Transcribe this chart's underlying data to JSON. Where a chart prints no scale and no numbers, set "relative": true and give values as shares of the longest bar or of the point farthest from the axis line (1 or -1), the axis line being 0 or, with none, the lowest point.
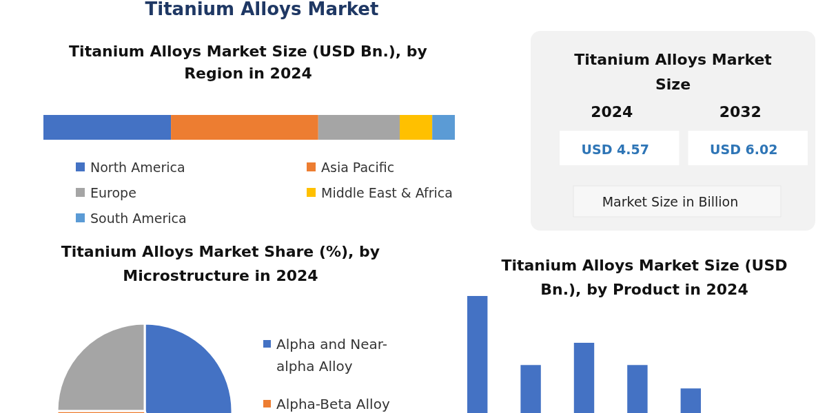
{
  "chart_data": [
    {
      "type": "bar",
      "title": "Titanium Alloys Market",
      "subtitle": "Titanium Alloys Market Size (USD Bn.), by Region in 2024",
      "categories": [
        null
      ],
      "stacked": true,
      "orientation": "horizontal",
      "relative": true,
      "legend": "bottom",
      "series": [
        {
          "name": "North America",
          "color": "#4472c4",
          "values": [
            0.31
          ]
        },
        {
          "name": "Asia Pacific",
          "color": "#ed7d31",
          "values": [
            0.358
          ]
        },
        {
          "name": "Europe",
          "color": "#a5a5a5",
          "values": [
            0.198
          ]
        },
        {
          "name": "Middle East & Africa",
          "color": "#ffc000",
          "values": [
            0.079
          ]
        },
        {
          "name": "South America",
          "color": "#5b9bd5",
          "values": [
            0.055
          ]
        }
      ]
    },
    {
      "type": "other",
      "title": "Titanium Alloys Market Size",
      "categories": [
        "2024",
        "2032"
      ],
      "value_labels": [
        "USD 4.57",
        "USD 6.02"
      ],
      "annotations": [
        "Market Size in Billion"
      ]
    },
    {
      "type": "pie",
      "title": "Titanium Alloys Market Share (%), by Microstructure in 2024",
      "categories": [
        "Alpha and Near-alpha Alloy",
        "Alpha-Beta Alloy",
        null
      ],
      "values": [
        45,
        30,
        25
      ],
      "colors": [
        "#4472c4",
        "#ed7d31",
        "#a5a5a5"
      ],
      "legend": "right"
    },
    {
      "type": "bar",
      "title": "Titanium Alloys Market Size (USD Bn.), by Product in 2024",
      "categories": [
        null,
        null,
        null,
        null,
        null
      ],
      "values": [
        1,
        0.41,
        0.6,
        0.41,
        0.21
      ],
      "color": "#4472c4",
      "relative": true
    }
  ]
}
